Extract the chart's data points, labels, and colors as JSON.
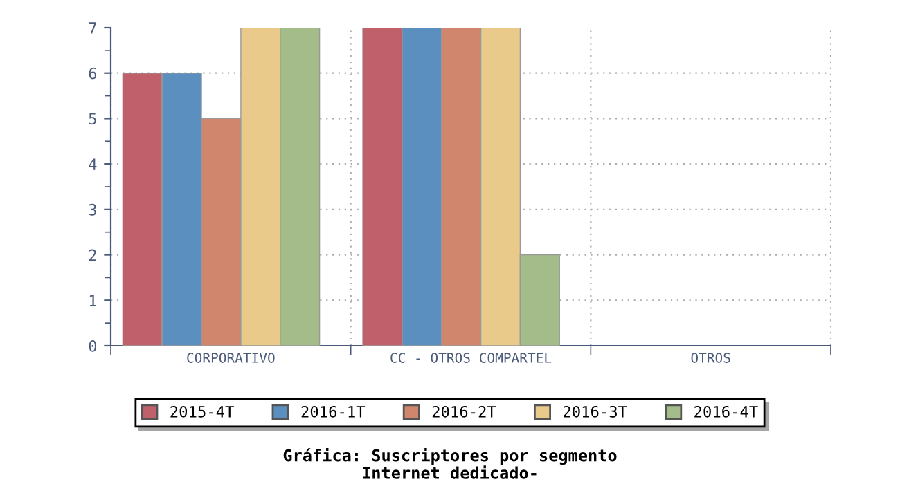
{
  "chart_data": {
    "type": "bar",
    "title": "Gráfica: Suscriptores por segmento",
    "subtitle": "Internet dedicado-",
    "categories": [
      "CORPORATIVO",
      "CC - OTROS COMPARTEL",
      "OTROS"
    ],
    "series": [
      {
        "name": "2015-4T",
        "color": "#c0606a",
        "values": [
          6,
          7,
          0
        ]
      },
      {
        "name": "2016-1T",
        "color": "#5b8fc0",
        "values": [
          6,
          7,
          0
        ]
      },
      {
        "name": "2016-2T",
        "color": "#d0866c",
        "values": [
          5,
          7,
          0
        ]
      },
      {
        "name": "2016-3T",
        "color": "#eaca8a",
        "values": [
          7,
          7,
          0
        ]
      },
      {
        "name": "2016-4T",
        "color": "#a4bc8a",
        "values": [
          7,
          2,
          0
        ]
      }
    ],
    "ylim": [
      0,
      7
    ],
    "yticks": [
      0,
      1,
      2,
      3,
      4,
      5,
      6,
      7
    ],
    "grid": true,
    "legend": "bottom"
  }
}
